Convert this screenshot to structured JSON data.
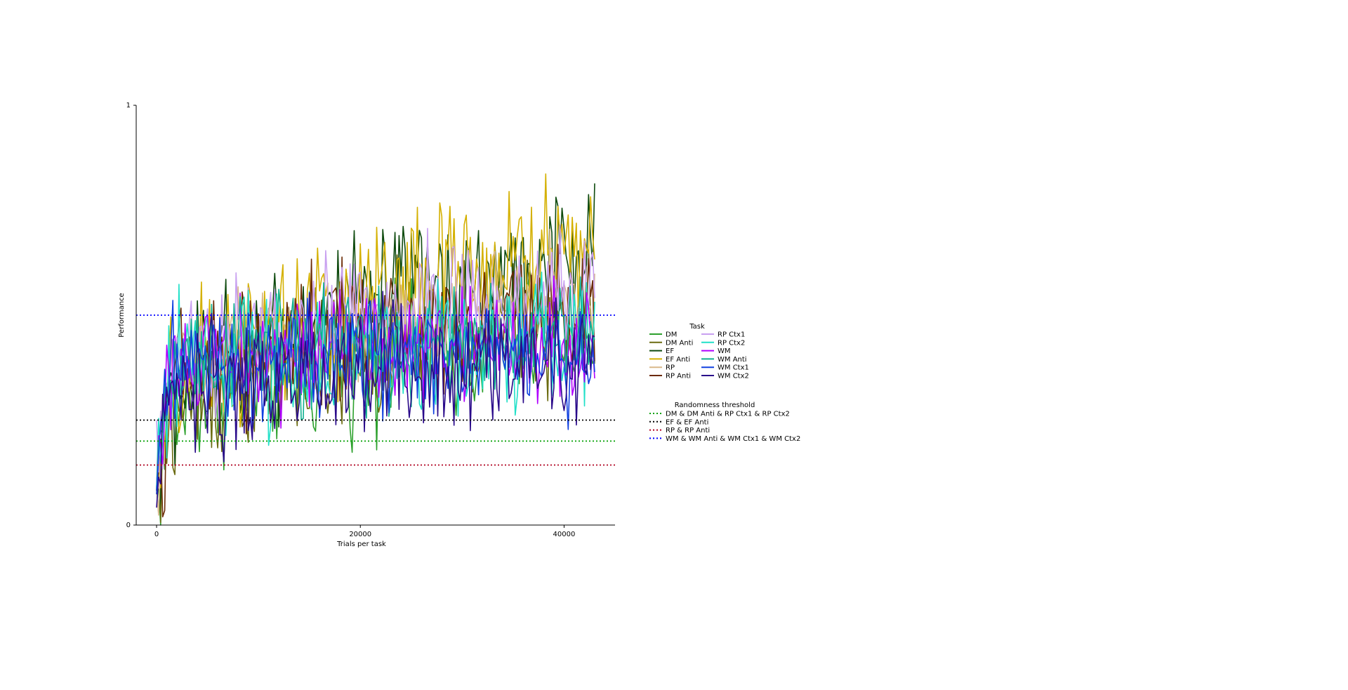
{
  "chart_data": {
    "type": "line",
    "title": "",
    "xlabel": "Trials per task",
    "ylabel": "Performance",
    "xlim": [
      -2000,
      45000
    ],
    "ylim": [
      0,
      1
    ],
    "x_ticks": [
      0,
      20000,
      40000
    ],
    "y_ticks": [
      0,
      1
    ],
    "grid": false,
    "x_sample_count": 216,
    "x_end": 43000,
    "legend_placement": "right",
    "legend_title": "Task",
    "series": [
      {
        "name": "DM",
        "color": "#2ca02c",
        "base_start": 0.22,
        "base_end": 0.46,
        "noise": 0.12
      },
      {
        "name": "DM Anti",
        "color": "#6b6b10",
        "base_start": 0.2,
        "base_end": 0.5,
        "noise": 0.13
      },
      {
        "name": "EF",
        "color": "#0e4a0e",
        "base_start": 0.24,
        "base_end": 0.64,
        "noise": 0.13
      },
      {
        "name": "EF Anti",
        "color": "#d4b000",
        "base_start": 0.22,
        "base_end": 0.68,
        "noise": 0.14
      },
      {
        "name": "RP",
        "color": "#d9b98a",
        "base_start": 0.3,
        "base_end": 0.54,
        "noise": 0.1
      },
      {
        "name": "RP Anti",
        "color": "#6b2a05",
        "base_start": 0.3,
        "base_end": 0.52,
        "noise": 0.12
      },
      {
        "name": "RP Ctx1",
        "color": "#c8a0f0",
        "base_start": 0.36,
        "base_end": 0.56,
        "noise": 0.12
      },
      {
        "name": "RP Ctx2",
        "color": "#20e0c8",
        "base_start": 0.36,
        "base_end": 0.44,
        "noise": 0.12
      },
      {
        "name": "WM",
        "color": "#b000ff",
        "base_start": 0.36,
        "base_end": 0.44,
        "noise": 0.1
      },
      {
        "name": "WM Anti",
        "color": "#10b090",
        "base_start": 0.38,
        "base_end": 0.44,
        "noise": 0.1
      },
      {
        "name": "WM Ctx1",
        "color": "#1040e0",
        "base_start": 0.36,
        "base_end": 0.4,
        "noise": 0.1
      },
      {
        "name": "WM Ctx2",
        "color": "#2a0a8a",
        "base_start": 0.3,
        "base_end": 0.38,
        "noise": 0.12
      }
    ],
    "threshold_legend_title": "Randomness threshold",
    "thresholds": [
      {
        "name": "DM & DM Anti & RP Ctx1 & RP Ctx2",
        "value": 0.2,
        "color": "#00a000"
      },
      {
        "name": "EF & EF Anti",
        "value": 0.25,
        "color": "#000000"
      },
      {
        "name": "RP & RP Anti",
        "value": 0.143,
        "color": "#b00020"
      },
      {
        "name": "WM & WM Anti & WM Ctx1 & WM Ctx2",
        "value": 0.5,
        "color": "#0000ff"
      }
    ]
  }
}
